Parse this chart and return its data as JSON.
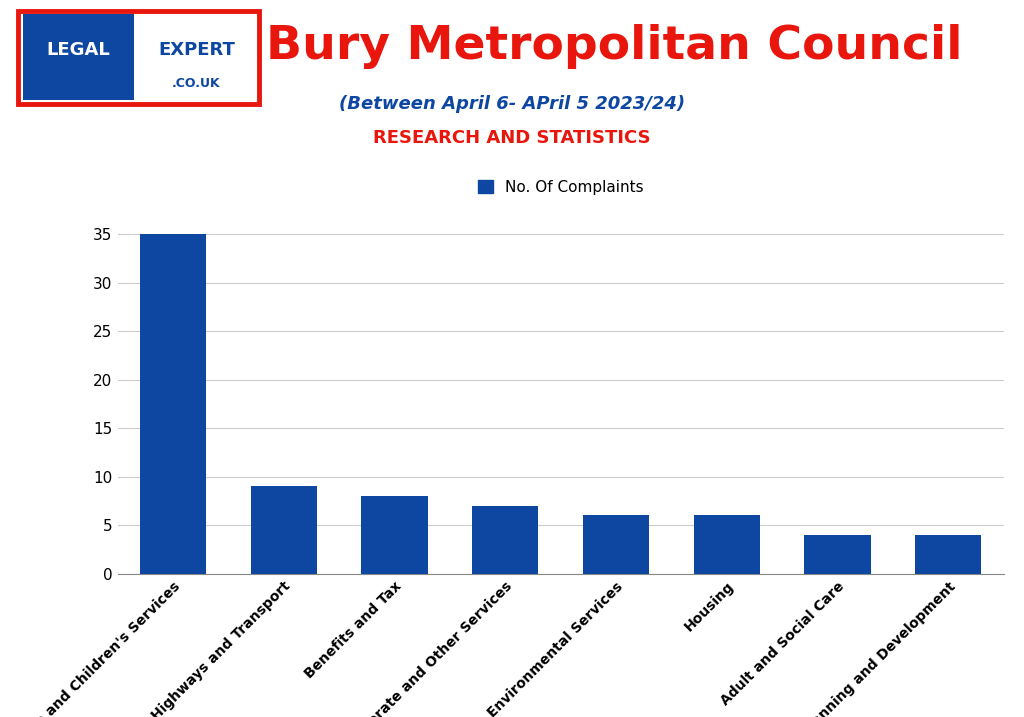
{
  "title": "Bury Metropolitan Council",
  "subtitle": "(Between April 6- APril 5 2023/24)",
  "subtitle2": "RESEARCH AND STATISTICS",
  "legend_label": "No. Of Complaints",
  "categories": [
    "Education and Children's Services",
    "Highways and Transport",
    "Benefits and Tax",
    "Corporate and Other Services",
    "Environmental Services",
    "Housing",
    "Adult and Social Care",
    "Planning and Development"
  ],
  "values": [
    35,
    9,
    8,
    7,
    6,
    6,
    4,
    4
  ],
  "bar_color": "#0e47a1",
  "ylim": [
    0,
    37
  ],
  "yticks": [
    0,
    5,
    10,
    15,
    20,
    25,
    30,
    35
  ],
  "background_color": "#ffffff",
  "title_color": "#e8160c",
  "subtitle_color": "#0e47a1",
  "subtitle2_color": "#e8160c",
  "grid_color": "#cccccc",
  "title_fontsize": 34,
  "subtitle_fontsize": 13,
  "subtitle2_fontsize": 13,
  "legend_fontsize": 11,
  "tick_label_fontsize": 10,
  "logo_box_color": "#0e47a1",
  "logo_border_color": "#e8160c",
  "logo_text_legal": "LEGAL",
  "logo_text_expert": "EXPERT",
  "logo_text_couk": ".CO.UK"
}
